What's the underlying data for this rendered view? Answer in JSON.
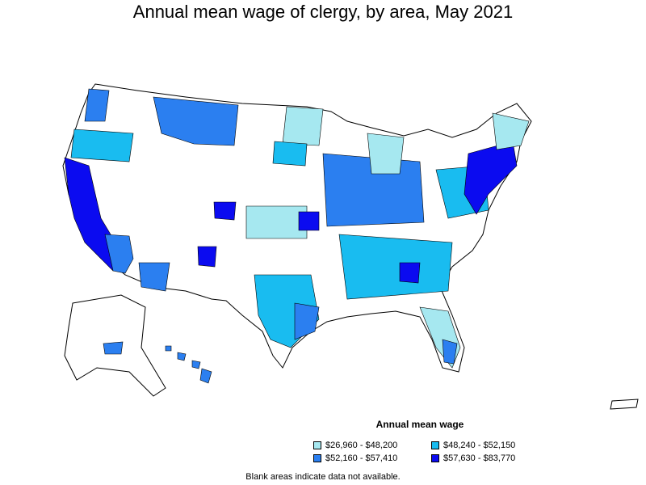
{
  "title": "Annual mean wage of clergy, by area, May 2021",
  "legend": {
    "title": "Annual mean wage",
    "items": [
      {
        "label": "$26,960 - $48,200",
        "color": "#a6e8f0"
      },
      {
        "label": "$48,240 - $52,150",
        "color": "#19bcf0"
      },
      {
        "label": "$52,160 - $57,410",
        "color": "#2b7ff0"
      },
      {
        "label": "$57,630 - $83,770",
        "color": "#0b0bf0"
      }
    ]
  },
  "footnote": "Blank areas indicate data not available."
}
